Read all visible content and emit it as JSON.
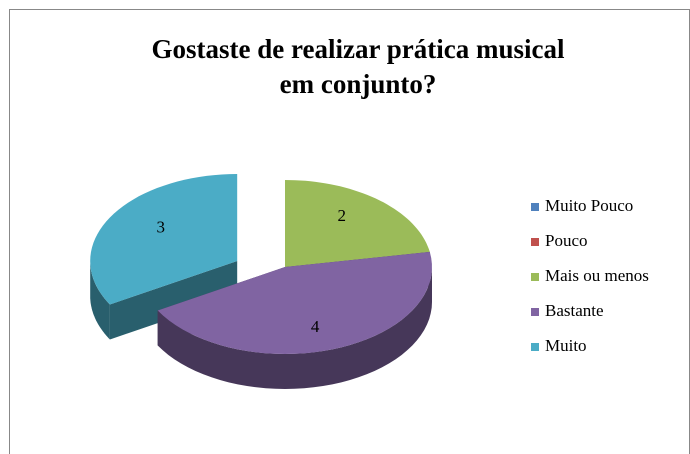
{
  "chart_data": {
    "type": "pie3d",
    "title": [
      "Gostaste de realizar prática musical",
      "em conjunto?"
    ],
    "categories": [
      "Muito Pouco",
      "Pouco",
      "Mais ou menos",
      "Bastante",
      "Muito"
    ],
    "values": [
      0,
      0,
      2,
      4,
      3
    ],
    "colors": [
      "#4f81bd",
      "#c0504d",
      "#9bbb59",
      "#8064a2",
      "#4bacc6"
    ],
    "exploded": [
      "Muito"
    ],
    "legend": "right"
  }
}
